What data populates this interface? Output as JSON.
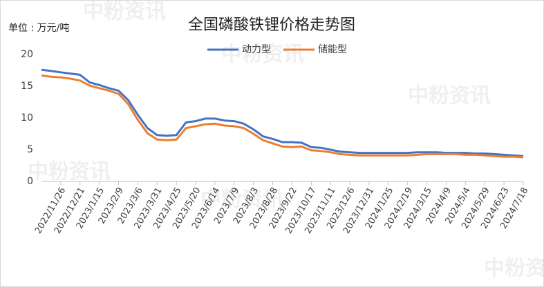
{
  "chart_data": {
    "type": "line",
    "title": "全国磷酸铁锂价格走势图",
    "unit_label": "单位 : 万元/吨",
    "watermark": "中粉资讯",
    "categories": [
      null,
      null,
      "2022/11/26",
      null,
      "2022/12/21",
      null,
      "2023/1/15",
      null,
      "2023/2/9",
      null,
      "2023/3/6",
      null,
      "2023/3/31",
      null,
      "2023/4/25",
      null,
      "2023/5/20",
      null,
      "2023/6/14",
      null,
      "2023/7/9",
      null,
      "2023/8/3",
      null,
      "2023/8/28",
      null,
      "2023/9/22",
      null,
      "2023/10/17",
      null,
      "2023/11/11",
      null,
      "2023/12/6",
      null,
      "2023/12/31",
      null,
      "2024/1/25",
      null,
      "2024/2/19",
      null,
      "2024/3/15",
      null,
      "2024/4/9",
      null,
      "2024/5/4",
      null,
      "2024/5/29",
      null,
      "2024/6/23",
      null,
      "2024/7/18"
    ],
    "series": [
      {
        "name": "动力型",
        "color": "#4472c4",
        "values": [
          17.6,
          17.4,
          17.2,
          17.0,
          16.8,
          15.6,
          15.2,
          14.7,
          14.3,
          12.8,
          10.5,
          8.4,
          7.3,
          7.2,
          7.3,
          9.3,
          9.5,
          9.9,
          9.9,
          9.6,
          9.5,
          9.1,
          8.2,
          7.1,
          6.7,
          6.2,
          6.2,
          6.1,
          5.4,
          5.3,
          5.0,
          4.7,
          4.6,
          4.5,
          4.5,
          4.5,
          4.5,
          4.5,
          4.5,
          4.6,
          4.6,
          4.6,
          4.5,
          4.5,
          4.5,
          4.4,
          4.4,
          4.3,
          4.2,
          4.1,
          4.0
        ]
      },
      {
        "name": "储能型",
        "color": "#ed7d31",
        "values": [
          16.7,
          16.5,
          16.4,
          16.2,
          15.9,
          15.1,
          14.7,
          14.3,
          13.8,
          12.2,
          9.7,
          7.6,
          6.6,
          6.5,
          6.6,
          8.4,
          8.7,
          9.0,
          9.1,
          8.8,
          8.7,
          8.4,
          7.5,
          6.5,
          6.0,
          5.5,
          5.4,
          5.5,
          4.9,
          4.8,
          4.6,
          4.3,
          4.2,
          4.1,
          4.1,
          4.1,
          4.1,
          4.1,
          4.1,
          4.2,
          4.3,
          4.3,
          4.3,
          4.3,
          4.2,
          4.2,
          4.1,
          4.0,
          3.9,
          3.9,
          3.8
        ]
      }
    ],
    "ylim": [
      0,
      20
    ],
    "yticks": [
      0,
      5,
      10,
      15,
      20
    ],
    "grid": false,
    "legend": "top"
  }
}
